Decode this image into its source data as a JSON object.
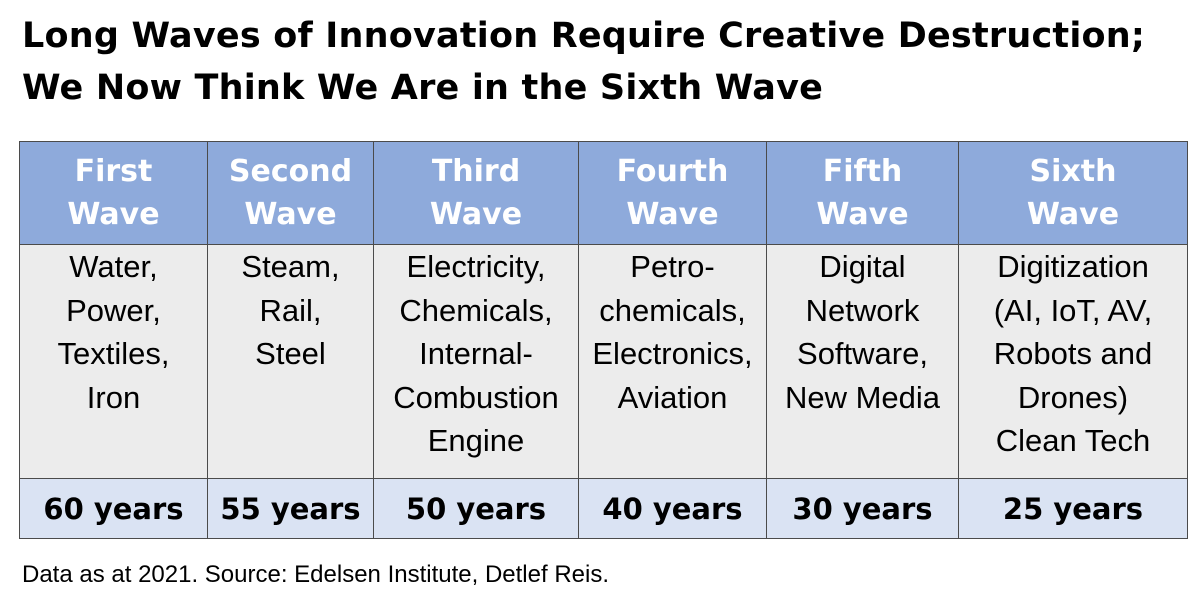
{
  "title": {
    "line1": "Long Waves of Innovation Require Creative Destruction;",
    "line2": "We Now Think We Are in the Sixth Wave"
  },
  "waves": [
    {
      "name_lines": [
        "First",
        "Wave"
      ],
      "tech_lines": [
        "Water,",
        "Power,",
        "Textiles,",
        "Iron"
      ],
      "duration": "60 years"
    },
    {
      "name_lines": [
        "Second",
        "Wave"
      ],
      "tech_lines": [
        "Steam,",
        "Rail,",
        "Steel"
      ],
      "duration": "55 years"
    },
    {
      "name_lines": [
        "Third",
        "Wave"
      ],
      "tech_lines": [
        "Electricity,",
        "Chemicals,",
        "Internal-",
        "Combustion",
        "Engine"
      ],
      "duration": "50 years"
    },
    {
      "name_lines": [
        "Fourth",
        "Wave"
      ],
      "tech_lines": [
        "Petro-",
        "chemicals,",
        "Electronics,",
        "Aviation"
      ],
      "duration": "40 years"
    },
    {
      "name_lines": [
        "Fifth",
        "Wave"
      ],
      "tech_lines": [
        "Digital",
        "Network",
        "Software,",
        "New Media"
      ],
      "duration": "30 years"
    },
    {
      "name_lines": [
        "Sixth",
        "Wave"
      ],
      "tech_lines": [
        "Digitization",
        "(AI, IoT, AV,",
        "Robots and",
        "Drones)",
        "Clean Tech"
      ],
      "duration": "25 years"
    }
  ],
  "footer": {
    "source": "Data as at 2021. Source: Edelsen Institute, Detlef Reis."
  },
  "colors": {
    "header_bg": "#8eaadb",
    "header_text": "#ffffff",
    "body_bg": "#ececec",
    "years_bg": "#dae3f3",
    "border": "#4b4b4b"
  }
}
